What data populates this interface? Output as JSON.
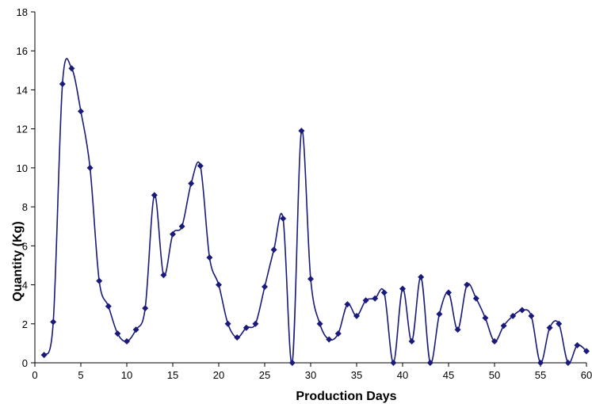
{
  "chart_data": {
    "type": "line",
    "title": "",
    "xlabel": "Production Days",
    "ylabel": "Quantity (Kg)",
    "xlim": [
      0,
      60
    ],
    "ylim": [
      0,
      18
    ],
    "x_ticks": [
      0,
      5,
      10,
      15,
      20,
      25,
      30,
      35,
      40,
      45,
      50,
      55,
      60
    ],
    "y_ticks": [
      0,
      2,
      4,
      6,
      8,
      10,
      12,
      14,
      16,
      18
    ],
    "grid": false,
    "legend": "none",
    "line_color": "#1a1a7a",
    "marker": "diamond",
    "smooth": true,
    "series": [
      {
        "x": [
          1,
          2,
          3,
          4,
          5,
          6,
          7,
          8,
          9,
          10,
          11,
          12,
          13,
          14,
          15,
          16,
          17,
          18,
          19,
          20,
          21,
          22,
          23,
          24,
          25,
          26,
          27,
          28,
          29,
          30,
          31,
          32,
          33,
          34,
          35,
          36,
          37,
          38,
          39,
          40,
          41,
          42,
          43,
          44,
          45,
          46,
          47,
          48,
          49,
          50,
          51,
          52,
          53,
          54,
          55,
          56,
          57,
          58,
          59,
          60
        ],
        "values": [
          0.4,
          2.1,
          14.3,
          15.1,
          12.9,
          10.0,
          4.2,
          2.9,
          1.5,
          1.1,
          1.7,
          2.8,
          8.6,
          4.5,
          6.6,
          7.0,
          9.2,
          10.1,
          5.4,
          4.0,
          2.0,
          1.3,
          1.8,
          2.0,
          3.9,
          5.8,
          7.4,
          0.0,
          11.9,
          4.3,
          2.0,
          1.2,
          1.5,
          3.0,
          2.4,
          3.2,
          3.3,
          3.6,
          0.0,
          3.8,
          1.1,
          4.4,
          0.0,
          2.5,
          3.6,
          1.7,
          4.0,
          3.3,
          2.3,
          1.1,
          1.9,
          2.4,
          2.7,
          2.4,
          0.0,
          1.8,
          2.0,
          0.0,
          0.9,
          0.6
        ]
      }
    ]
  }
}
